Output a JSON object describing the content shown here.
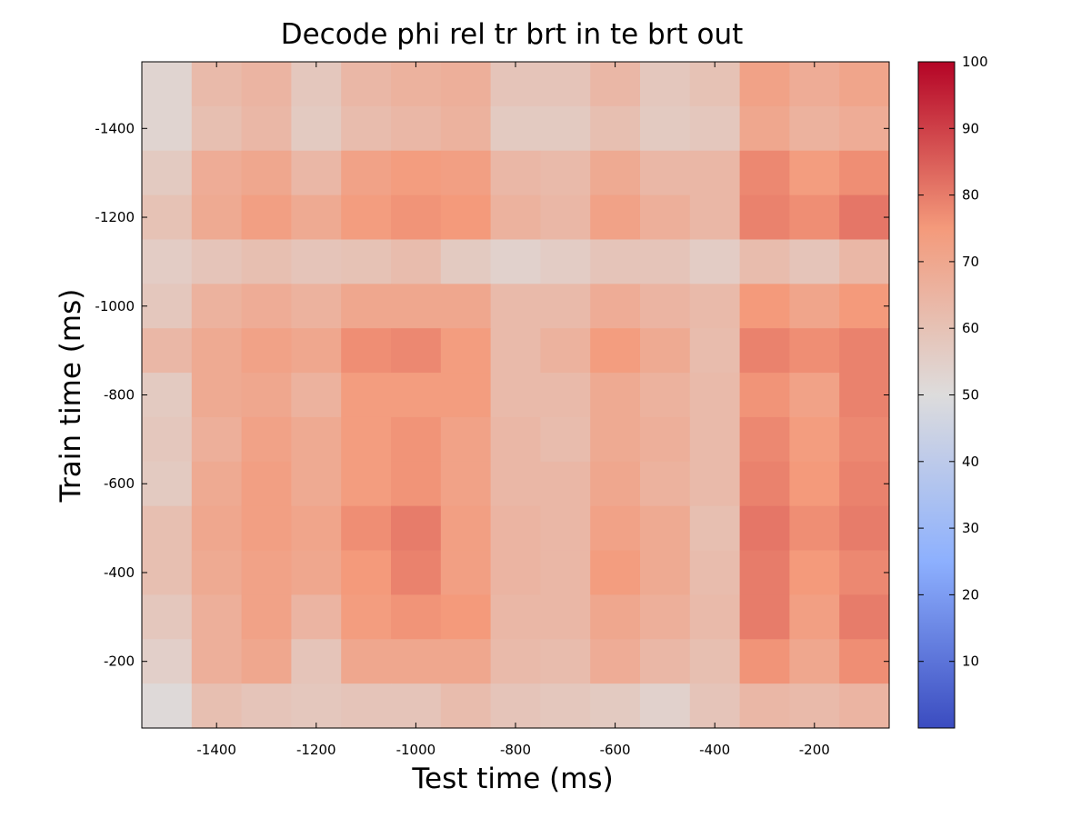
{
  "chart_data": {
    "type": "heatmap",
    "title": "Decode phi rel tr brt in te brt out",
    "xlabel": "Test time (ms)",
    "ylabel": "Train time (ms)",
    "x": [
      -1500,
      -1400,
      -1300,
      -1200,
      -1100,
      -1000,
      -900,
      -800,
      -700,
      -600,
      -500,
      -400,
      -300,
      -200,
      -100
    ],
    "y": [
      -1500,
      -1400,
      -1300,
      -1200,
      -1100,
      -1000,
      -900,
      -800,
      -700,
      -600,
      -500,
      -400,
      -300,
      -200,
      -100
    ],
    "xlim": [
      -1550,
      -50
    ],
    "ylim": [
      -1550,
      -50
    ],
    "y_reversed": true,
    "x_ticks": [
      -1400,
      -1200,
      -1000,
      -800,
      -600,
      -400,
      -200
    ],
    "y_ticks": [
      -1400,
      -1200,
      -1000,
      -800,
      -600,
      -400,
      -200
    ],
    "colorbar": {
      "min": 0,
      "max": 100,
      "ticks": [
        10,
        20,
        30,
        40,
        50,
        60,
        70,
        80,
        90,
        100
      ],
      "colormap": "coolwarm"
    },
    "values": [
      [
        53,
        63,
        65,
        58,
        64,
        66,
        67,
        59,
        59,
        64,
        58,
        60,
        72,
        68,
        71
      ],
      [
        53,
        61,
        64,
        57,
        62,
        64,
        66,
        57,
        57,
        61,
        57,
        58,
        70,
        66,
        68
      ],
      [
        57,
        68,
        70,
        64,
        72,
        74,
        73,
        64,
        63,
        69,
        64,
        64,
        78,
        74,
        77
      ],
      [
        60,
        69,
        73,
        69,
        74,
        76,
        75,
        66,
        64,
        72,
        67,
        64,
        79,
        77,
        81
      ],
      [
        56,
        59,
        61,
        59,
        60,
        62,
        57,
        54,
        56,
        59,
        59,
        56,
        62,
        59,
        64
      ],
      [
        58,
        66,
        68,
        66,
        70,
        70,
        70,
        63,
        63,
        68,
        65,
        63,
        75,
        71,
        75
      ],
      [
        64,
        69,
        72,
        70,
        77,
        78,
        74,
        63,
        66,
        74,
        69,
        62,
        79,
        77,
        79
      ],
      [
        57,
        69,
        70,
        66,
        74,
        74,
        74,
        63,
        63,
        69,
        66,
        63,
        76,
        72,
        79
      ],
      [
        58,
        67,
        72,
        69,
        74,
        76,
        72,
        64,
        62,
        69,
        67,
        63,
        78,
        74,
        78
      ],
      [
        57,
        69,
        73,
        69,
        74,
        76,
        72,
        64,
        64,
        70,
        66,
        63,
        79,
        75,
        79
      ],
      [
        61,
        70,
        73,
        71,
        77,
        80,
        73,
        65,
        64,
        72,
        69,
        61,
        81,
        77,
        80
      ],
      [
        61,
        69,
        72,
        70,
        75,
        79,
        73,
        65,
        64,
        74,
        69,
        62,
        80,
        75,
        78
      ],
      [
        58,
        67,
        72,
        65,
        74,
        76,
        75,
        64,
        64,
        70,
        67,
        63,
        80,
        73,
        80
      ],
      [
        55,
        67,
        70,
        59,
        70,
        70,
        70,
        63,
        62,
        68,
        64,
        61,
        76,
        70,
        77
      ],
      [
        51,
        61,
        59,
        58,
        59,
        59,
        62,
        59,
        58,
        57,
        54,
        59,
        64,
        63,
        65
      ]
    ]
  }
}
